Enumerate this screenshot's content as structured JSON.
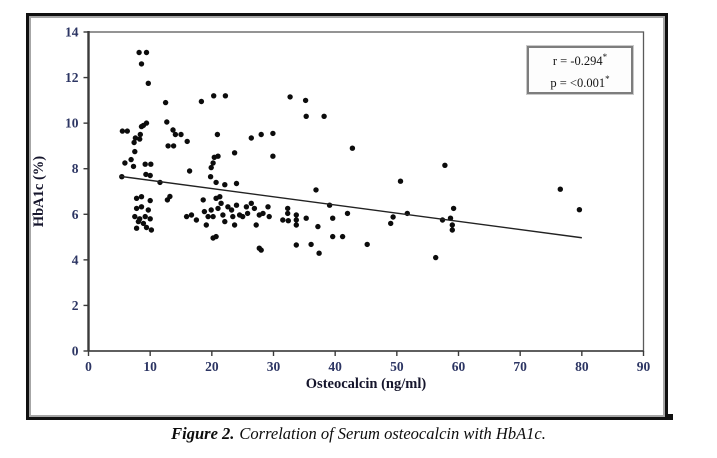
{
  "figure": {
    "caption_prefix": "Figure 2.",
    "caption_text": "Correlation of Serum osteocalcin with HbA1c."
  },
  "annotation": {
    "r": {
      "text": "r = -0.294",
      "sup": "*"
    },
    "p": {
      "text": "p = <0.001",
      "sup": "*"
    }
  },
  "colors": {
    "point": "#0c0c0c",
    "trend_line": "#222222",
    "tick_label": "#2c3563",
    "frame_border": "#101010",
    "plot_border": "#5a5a5a"
  },
  "chart_data": {
    "type": "scatter",
    "title": "",
    "xlabel": "Osteocalcin (ng/ml)",
    "ylabel": "HbA1c (%)",
    "xlim": [
      0,
      90
    ],
    "ylim": [
      0,
      14
    ],
    "xticks": [
      0,
      10,
      20,
      30,
      40,
      50,
      60,
      70,
      80,
      90
    ],
    "yticks": [
      0,
      2,
      4,
      6,
      8,
      10,
      12,
      14
    ],
    "grid": false,
    "legend": "none",
    "correlation_r": "-0.294",
    "p_value": "<0.001",
    "trend_line": {
      "x1": 5,
      "y1": 7.67,
      "x2": 80,
      "y2": 4.97
    },
    "points": [
      [
        8.2,
        13.1
      ],
      [
        9.4,
        13.1
      ],
      [
        8.6,
        12.6
      ],
      [
        9.7,
        11.75
      ],
      [
        12.5,
        10.9
      ],
      [
        18.3,
        10.95
      ],
      [
        20.3,
        11.2
      ],
      [
        22.2,
        11.2
      ],
      [
        32.7,
        11.15
      ],
      [
        35.2,
        11.0
      ],
      [
        35.3,
        10.3
      ],
      [
        38.2,
        10.3
      ],
      [
        12.7,
        10.05
      ],
      [
        8.6,
        9.85
      ],
      [
        9.4,
        10.0
      ],
      [
        5.5,
        9.65
      ],
      [
        6.3,
        9.65
      ],
      [
        8.9,
        9.9
      ],
      [
        8.4,
        9.5
      ],
      [
        7.6,
        9.35
      ],
      [
        8.3,
        9.3
      ],
      [
        7.4,
        9.15
      ],
      [
        13.7,
        9.7
      ],
      [
        14.1,
        9.5
      ],
      [
        15.0,
        9.5
      ],
      [
        16.0,
        9.2
      ],
      [
        12.9,
        9.0
      ],
      [
        13.8,
        9.0
      ],
      [
        20.9,
        9.5
      ],
      [
        26.4,
        9.35
      ],
      [
        28.0,
        9.5
      ],
      [
        29.9,
        9.55
      ],
      [
        7.5,
        8.75
      ],
      [
        5.9,
        8.25
      ],
      [
        6.9,
        8.4
      ],
      [
        7.3,
        8.1
      ],
      [
        9.2,
        8.2
      ],
      [
        10.1,
        8.2
      ],
      [
        20.4,
        8.5
      ],
      [
        21.0,
        8.55
      ],
      [
        20.2,
        8.25
      ],
      [
        23.7,
        8.7
      ],
      [
        29.9,
        8.55
      ],
      [
        42.8,
        8.9
      ],
      [
        19.9,
        8.05
      ],
      [
        16.4,
        7.9
      ],
      [
        5.4,
        7.65
      ],
      [
        9.3,
        7.75
      ],
      [
        10.0,
        7.7
      ],
      [
        11.6,
        7.4
      ],
      [
        19.8,
        7.65
      ],
      [
        20.7,
        7.4
      ],
      [
        22.1,
        7.3
      ],
      [
        24.0,
        7.35
      ],
      [
        36.9,
        7.07
      ],
      [
        50.6,
        7.45
      ],
      [
        57.8,
        8.15
      ],
      [
        76.5,
        7.1
      ],
      [
        79.6,
        6.2
      ],
      [
        7.8,
        6.7
      ],
      [
        8.6,
        6.77
      ],
      [
        10.0,
        6.6
      ],
      [
        7.8,
        6.26
      ],
      [
        8.6,
        6.33
      ],
      [
        9.7,
        6.19
      ],
      [
        7.5,
        5.9
      ],
      [
        8.3,
        5.8
      ],
      [
        9.2,
        5.9
      ],
      [
        10.0,
        5.8
      ],
      [
        8.1,
        5.68
      ],
      [
        8.9,
        5.6
      ],
      [
        7.8,
        5.39
      ],
      [
        9.4,
        5.42
      ],
      [
        10.2,
        5.31
      ],
      [
        12.8,
        6.63
      ],
      [
        13.2,
        6.78
      ],
      [
        15.9,
        5.9
      ],
      [
        16.7,
        5.97
      ],
      [
        17.5,
        5.75
      ],
      [
        18.6,
        6.63
      ],
      [
        18.8,
        6.12
      ],
      [
        19.4,
        5.9
      ],
      [
        19.1,
        5.53
      ],
      [
        19.9,
        6.19
      ],
      [
        20.2,
        5.9
      ],
      [
        20.7,
        6.7
      ],
      [
        21.3,
        6.77
      ],
      [
        21.5,
        6.48
      ],
      [
        21.0,
        6.26
      ],
      [
        21.8,
        5.97
      ],
      [
        22.1,
        5.68
      ],
      [
        20.7,
        5.02
      ],
      [
        22.6,
        6.33
      ],
      [
        23.2,
        6.19
      ],
      [
        23.4,
        5.9
      ],
      [
        23.7,
        5.53
      ],
      [
        24.0,
        6.4
      ],
      [
        24.5,
        5.97
      ],
      [
        25.0,
        5.9
      ],
      [
        25.6,
        6.33
      ],
      [
        25.8,
        6.04
      ],
      [
        26.4,
        6.48
      ],
      [
        26.9,
        6.26
      ],
      [
        27.2,
        5.53
      ],
      [
        27.7,
        5.97
      ],
      [
        28.3,
        6.04
      ],
      [
        29.1,
        6.33
      ],
      [
        29.3,
        5.9
      ],
      [
        27.7,
        4.51
      ],
      [
        32.3,
        6.26
      ],
      [
        32.3,
        6.04
      ],
      [
        31.5,
        5.75
      ],
      [
        32.4,
        5.72
      ],
      [
        33.7,
        5.97
      ],
      [
        33.7,
        5.75
      ],
      [
        33.7,
        5.53
      ],
      [
        35.3,
        5.83
      ],
      [
        37.2,
        5.46
      ],
      [
        39.1,
        6.4
      ],
      [
        39.6,
        5.83
      ],
      [
        42.0,
        6.04
      ],
      [
        39.6,
        5.02
      ],
      [
        41.2,
        5.02
      ],
      [
        33.7,
        4.65
      ],
      [
        36.1,
        4.68
      ],
      [
        37.4,
        4.29
      ],
      [
        45.2,
        4.68
      ],
      [
        49.0,
        5.6
      ],
      [
        49.4,
        5.88
      ],
      [
        51.7,
        6.04
      ],
      [
        56.3,
        4.1
      ],
      [
        59.2,
        6.26
      ],
      [
        57.4,
        5.75
      ],
      [
        58.7,
        5.83
      ],
      [
        59.0,
        5.53
      ],
      [
        59.0,
        5.31
      ],
      [
        20.2,
        4.96
      ],
      [
        28.0,
        4.43
      ]
    ]
  }
}
